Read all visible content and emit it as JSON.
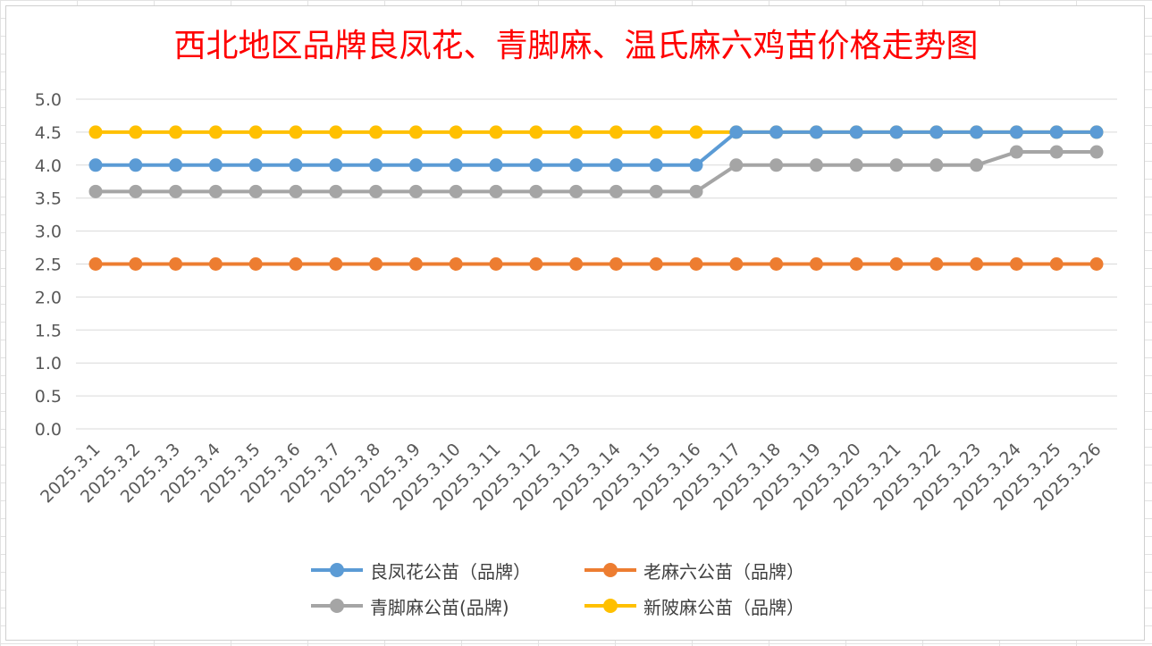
{
  "window": {
    "title": "西北地区品牌良凤花、青脚麻、温氏麻六鸡苗价格走势图"
  },
  "chart_data": {
    "type": "line",
    "title": "西北地区品牌良凤花、青脚麻、温氏麻六鸡苗价格走势图",
    "xlabel": "",
    "ylabel": "",
    "ylim": [
      0,
      5
    ],
    "yticks": [
      "0.0",
      "0.5",
      "1.0",
      "1.5",
      "2.0",
      "2.5",
      "3.0",
      "3.5",
      "4.0",
      "4.5",
      "5.0"
    ],
    "grid": "horizontal",
    "legend_position": "bottom",
    "categories": [
      "2025.3.1",
      "2025.3.2",
      "2025.3.3",
      "2025.3.4",
      "2025.3.5",
      "2025.3.6",
      "2025.3.7",
      "2025.3.8",
      "2025.3.9",
      "2025.3.10",
      "2025.3.11",
      "2025.3.12",
      "2025.3.13",
      "2025.3.14",
      "2025.3.15",
      "2025.3.16",
      "2025.3.17",
      "2025.3.18",
      "2025.3.19",
      "2025.3.20",
      "2025.3.21",
      "2025.3.22",
      "2025.3.23",
      "2025.3.24",
      "2025.3.25",
      "2025.3.26"
    ],
    "series": [
      {
        "name": "良凤花公苗（品牌）",
        "color": "#5b9bd5",
        "values": [
          4.0,
          4.0,
          4.0,
          4.0,
          4.0,
          4.0,
          4.0,
          4.0,
          4.0,
          4.0,
          4.0,
          4.0,
          4.0,
          4.0,
          4.0,
          4.0,
          4.5,
          4.5,
          4.5,
          4.5,
          4.5,
          4.5,
          4.5,
          4.5,
          4.5,
          4.5
        ]
      },
      {
        "name": "老麻六公苗（品牌）",
        "color": "#ed7d31",
        "values": [
          2.5,
          2.5,
          2.5,
          2.5,
          2.5,
          2.5,
          2.5,
          2.5,
          2.5,
          2.5,
          2.5,
          2.5,
          2.5,
          2.5,
          2.5,
          2.5,
          2.5,
          2.5,
          2.5,
          2.5,
          2.5,
          2.5,
          2.5,
          2.5,
          2.5,
          2.5
        ]
      },
      {
        "name": "青脚麻公苗(品牌)",
        "color": "#a5a5a5",
        "values": [
          3.6,
          3.6,
          3.6,
          3.6,
          3.6,
          3.6,
          3.6,
          3.6,
          3.6,
          3.6,
          3.6,
          3.6,
          3.6,
          3.6,
          3.6,
          3.6,
          4.0,
          4.0,
          4.0,
          4.0,
          4.0,
          4.0,
          4.0,
          4.2,
          4.2,
          4.2
        ]
      },
      {
        "name": "新陂麻公苗（品牌）",
        "color": "#ffc000",
        "values": [
          4.5,
          4.5,
          4.5,
          4.5,
          4.5,
          4.5,
          4.5,
          4.5,
          4.5,
          4.5,
          4.5,
          4.5,
          4.5,
          4.5,
          4.5,
          4.5,
          4.5,
          4.5,
          4.5,
          4.5,
          4.5,
          4.5,
          4.5,
          4.5,
          4.5,
          4.5
        ]
      }
    ]
  }
}
